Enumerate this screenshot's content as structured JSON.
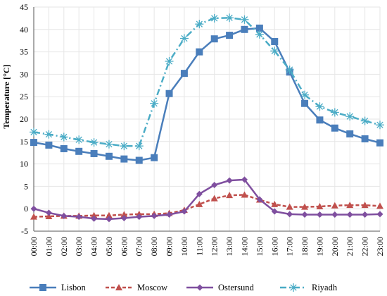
{
  "chart_data": {
    "type": "line",
    "title": "",
    "xlabel": "",
    "ylabel": "Temperature [°C]",
    "ylim": [
      -5,
      45
    ],
    "yticks": [
      -5,
      0,
      5,
      10,
      15,
      20,
      25,
      30,
      35,
      40,
      45
    ],
    "grid": true,
    "legend_position": "bottom",
    "categories": [
      "00:00",
      "01:00",
      "02:00",
      "03:00",
      "04:00",
      "05:00",
      "06:00",
      "07:00",
      "08:00",
      "09:00",
      "10:00",
      "11:00",
      "12:00",
      "13:00",
      "14:00",
      "15:00",
      "16:00",
      "17:00",
      "18:00",
      "19:00",
      "20:00",
      "21:00",
      "22:00",
      "23:00"
    ],
    "series": [
      {
        "name": "Lisbon",
        "color": "#4a7ebb",
        "marker": "square",
        "dash": "solid",
        "values": [
          14.8,
          14.2,
          13.4,
          12.8,
          12.3,
          11.7,
          11.1,
          10.8,
          11.4,
          25.7,
          30.2,
          35.0,
          37.9,
          38.7,
          40.0,
          40.3,
          37.3,
          30.5,
          23.5,
          19.8,
          18.0,
          16.7,
          15.6,
          14.7
        ]
      },
      {
        "name": "Moscow",
        "color": "#c0504d",
        "marker": "triangle",
        "dash": "dashed",
        "values": [
          -1.8,
          -1.7,
          -1.6,
          -1.6,
          -1.5,
          -1.5,
          -1.3,
          -1.2,
          -1.2,
          -1.0,
          -0.3,
          1.0,
          2.3,
          3.0,
          3.1,
          2.0,
          1.0,
          0.4,
          0.4,
          0.5,
          0.7,
          0.8,
          0.8,
          0.6
        ]
      },
      {
        "name": "Ostersund",
        "color": "#7f4f9f",
        "marker": "diamond",
        "dash": "solid",
        "values": [
          0.0,
          -0.9,
          -1.6,
          -1.8,
          -2.2,
          -2.3,
          -2.1,
          -1.8,
          -1.6,
          -1.3,
          -0.6,
          3.3,
          5.3,
          6.3,
          6.5,
          2.1,
          -0.6,
          -1.2,
          -1.3,
          -1.3,
          -1.3,
          -1.3,
          -1.3,
          -1.2
        ]
      },
      {
        "name": "Riyadh",
        "color": "#4bacc6",
        "marker": "asterisk",
        "dash": "dashdot",
        "values": [
          17.1,
          16.6,
          16.0,
          15.4,
          14.8,
          14.4,
          14.0,
          14.0,
          23.5,
          32.9,
          38.0,
          41.2,
          42.5,
          42.6,
          42.2,
          38.9,
          35.2,
          31.0,
          25.4,
          22.8,
          21.5,
          20.6,
          19.6,
          18.7
        ]
      }
    ]
  }
}
